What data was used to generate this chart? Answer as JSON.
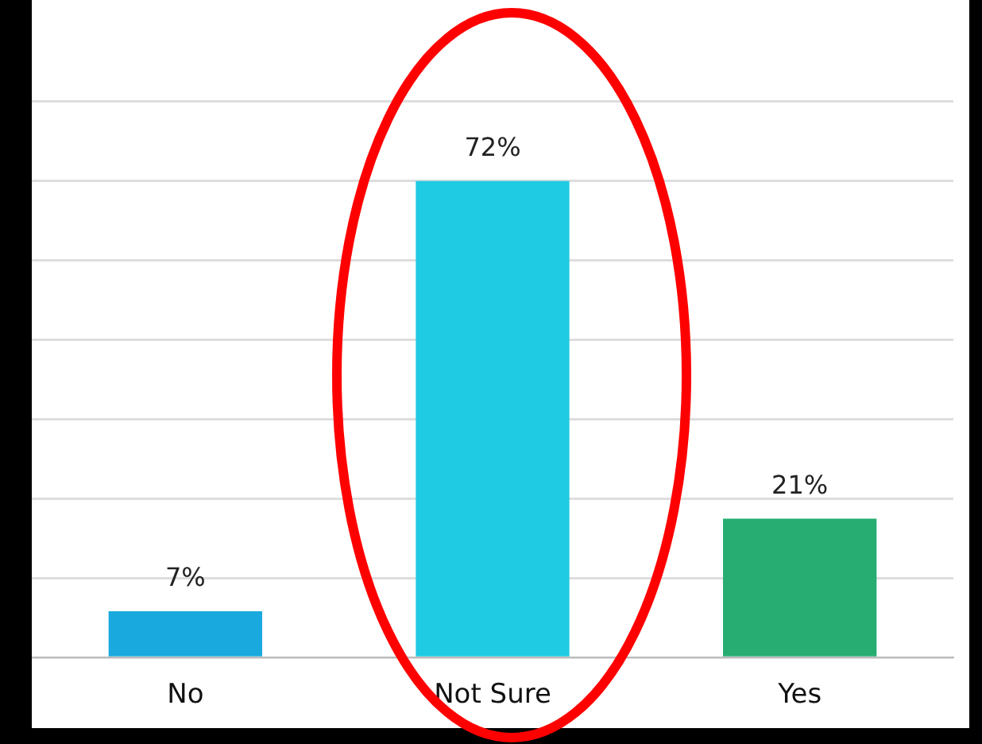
{
  "chart_data": {
    "type": "bar",
    "categories": [
      "No",
      "Not Sure",
      "Yes"
    ],
    "values": [
      7,
      72,
      21
    ],
    "colors": [
      "#1aa9de",
      "#1fcbe2",
      "#27ad72"
    ],
    "value_labels": [
      "7%",
      "72%",
      "21%"
    ],
    "grid": "y",
    "legend": false,
    "tick_labels": "x"
  }
}
